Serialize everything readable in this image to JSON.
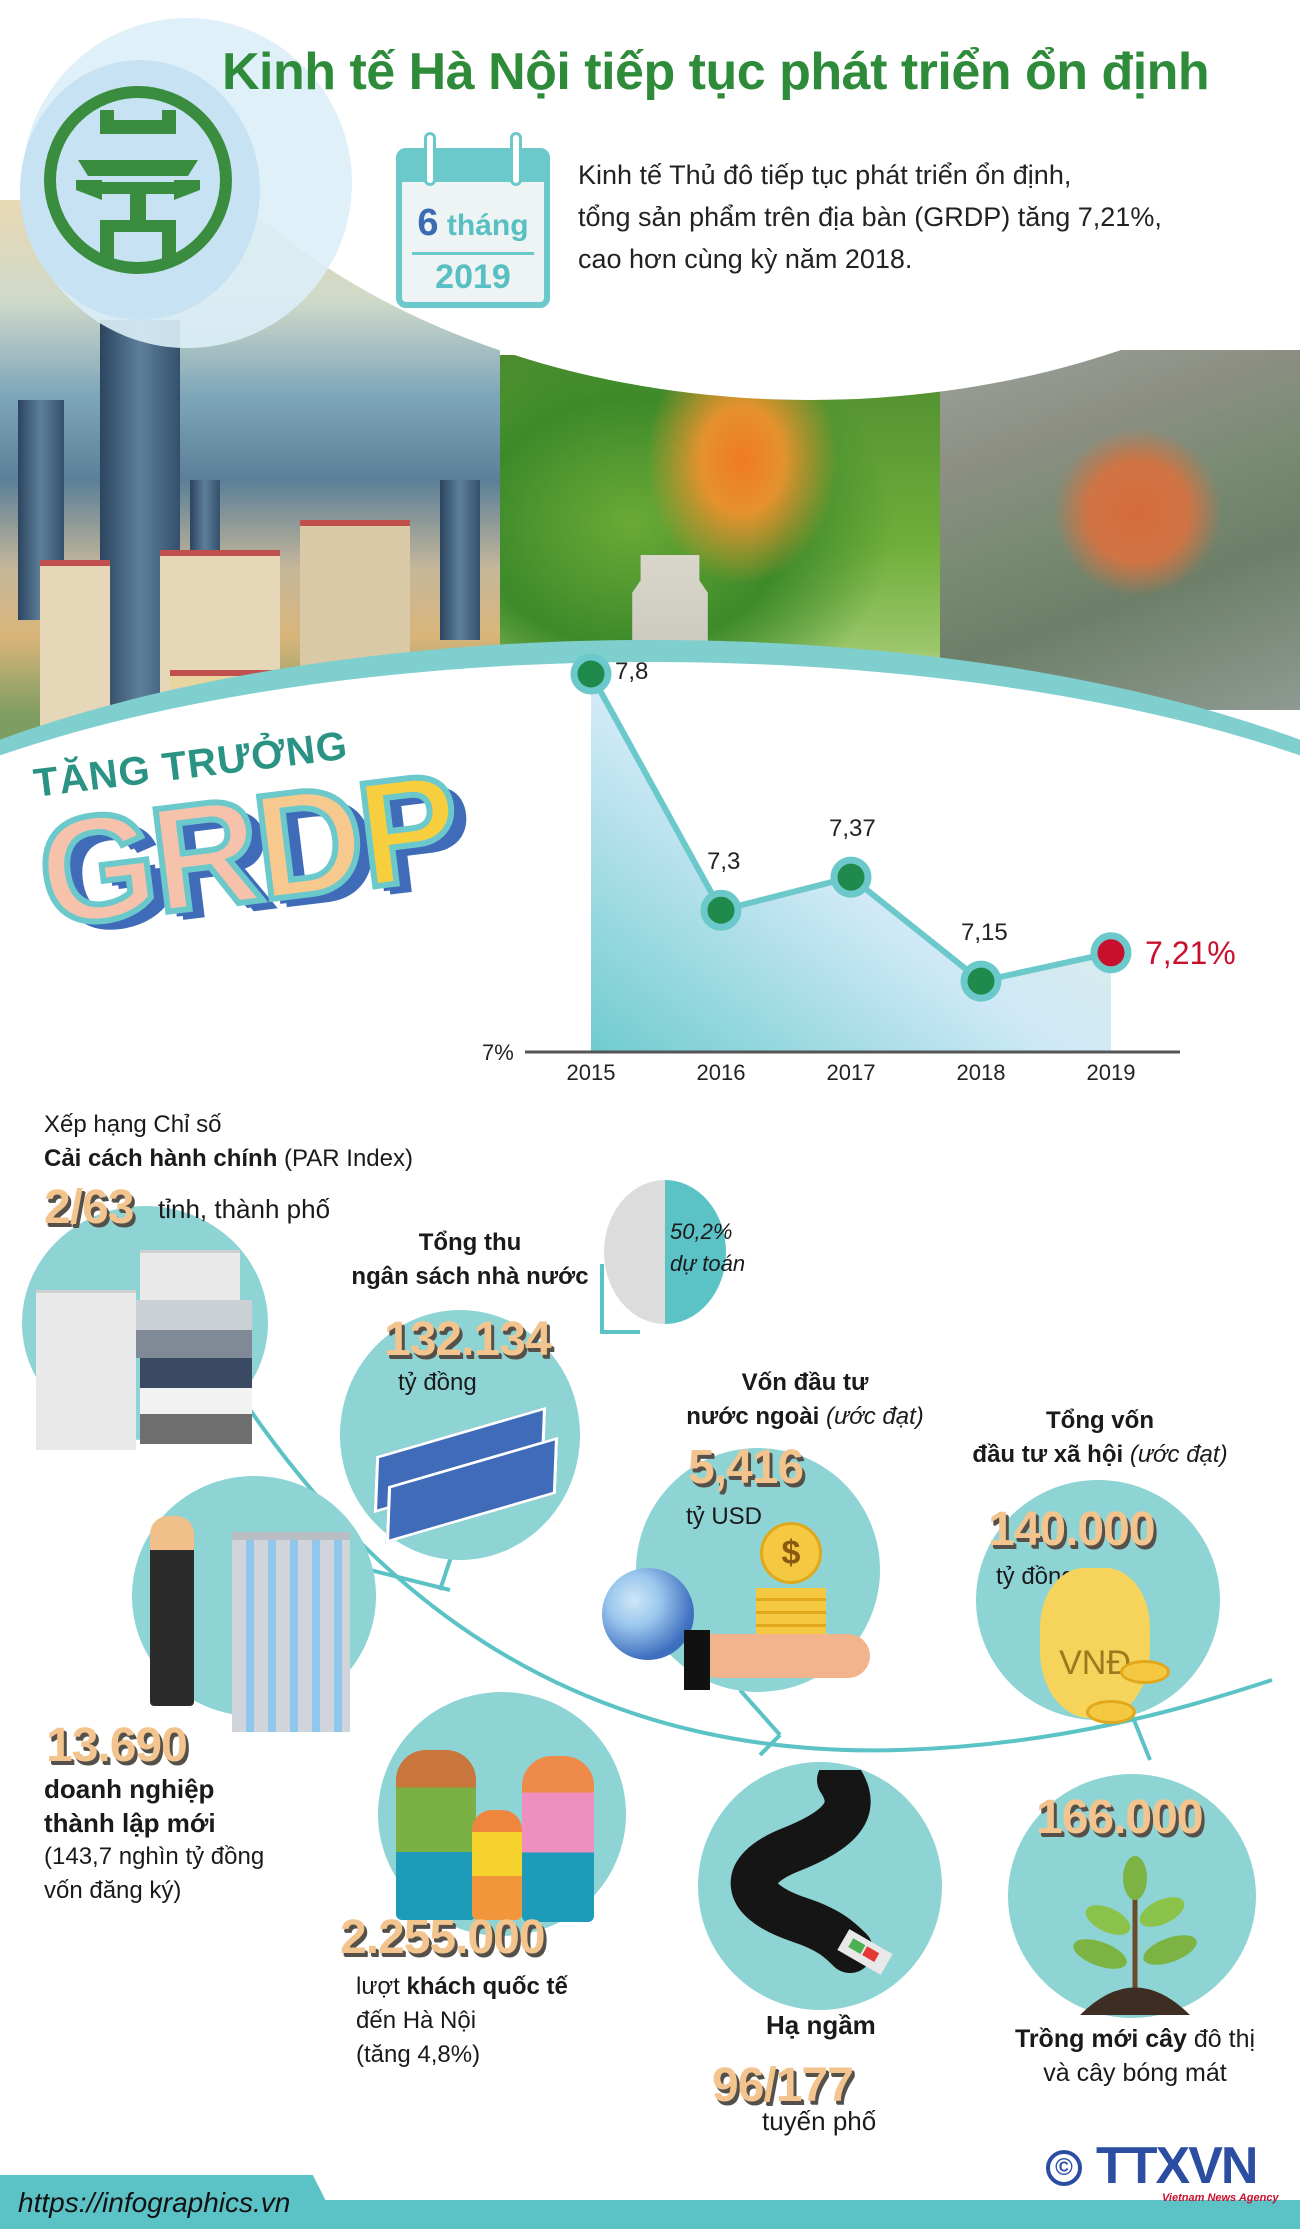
{
  "header": {
    "title": "Kinh tế Hà Nội tiếp tục phát triển ổn định",
    "calendar": {
      "month_num": "6",
      "month_word": "tháng",
      "year": "2019"
    },
    "intro_lines": [
      "Kinh tế Thủ đô tiếp tục phát triển ổn định,",
      "tổng sản phẩm trên địa bàn (GRDP) tăng 7,21%,",
      "cao hơn cùng kỳ năm 2018."
    ],
    "logo": "hanoi-emblem-icon"
  },
  "grdp": {
    "kicker": "TĂNG TRƯỞNG",
    "word_letters": [
      "G",
      "R",
      "D",
      "P"
    ],
    "word_colors": [
      "#f6c2ab",
      "#f6c2ab",
      "#f8c98f",
      "#f7cf3e"
    ]
  },
  "chart_data": {
    "type": "line",
    "title": "TĂNG TRƯỞNG GRDP",
    "xlabel": "",
    "ylabel": "",
    "x": [
      "2015",
      "2016",
      "2017",
      "2018",
      "2019"
    ],
    "categories": [
      "2015",
      "2016",
      "2017",
      "2018",
      "2019"
    ],
    "series": [
      {
        "name": "GRDP growth (%)",
        "values": [
          7.8,
          7.3,
          7.37,
          7.15,
          7.21
        ]
      }
    ],
    "values": [
      7.8,
      7.3,
      7.37,
      7.15,
      7.21
    ],
    "point_labels": [
      "7,8",
      "7,3",
      "7,37",
      "7,15",
      "7,21%"
    ],
    "y_baseline_label": "7%",
    "ylim": [
      7,
      7.8
    ],
    "highlight_index": 4,
    "colors": {
      "line": "#6cc9cb",
      "point": "#1f8a4c",
      "highlight": "#c8102e"
    },
    "grid": false,
    "legend": "none"
  },
  "stats": {
    "par_index": {
      "line1": "Xếp hạng Chỉ số",
      "line2_bold": "Cải cách hành chính",
      "line2_rest": " (PAR Index)",
      "value": "2/63",
      "unit": "tỉnh, thành phố"
    },
    "budget": {
      "title_line1": "Tổng thu",
      "title_line2": "ngân sách nhà nước",
      "value": "132.134",
      "unit": "tỷ đồng",
      "pie_percent": "50,2%",
      "pie_label": "dự toán"
    },
    "fdi": {
      "title_line1": "Vốn đầu tư",
      "title_line2_bold": "nước ngoài",
      "title_line2_italic": " (ước đạt)",
      "value": "5,416",
      "unit": "tỷ USD"
    },
    "social_investment": {
      "title_line1": "Tổng vốn",
      "title_line2_bold": "đầu tư xã hội",
      "title_line2_italic": " (ước đạt)",
      "value": "140.000",
      "unit": "tỷ đồng",
      "bag_label": "VNĐ"
    },
    "enterprises": {
      "value": "13.690",
      "line1": "doanh nghiệp",
      "line2": "thành lập mới",
      "line3": "(143,7 nghìn tỷ đồng",
      "line4": "vốn đăng ký)"
    },
    "tourists": {
      "value": "2.255.000",
      "line1_pre": "lượt ",
      "line1_bold": "khách quốc tế",
      "line2": "đến Hà Nội",
      "line3": "(tăng 4,8%)"
    },
    "underground": {
      "title": "Hạ ngầm",
      "value": "96/177",
      "unit": "tuyến phố"
    },
    "trees": {
      "value": "166.000",
      "line1_bold": "Trồng mới cây",
      "line1_rest": " đô thị",
      "line2": "và cây bóng mát"
    }
  },
  "footer": {
    "url": "https://infographics.vn",
    "copyright": "©",
    "agency": "TTXVN",
    "agency_sub": "Vietnam News Agency"
  }
}
